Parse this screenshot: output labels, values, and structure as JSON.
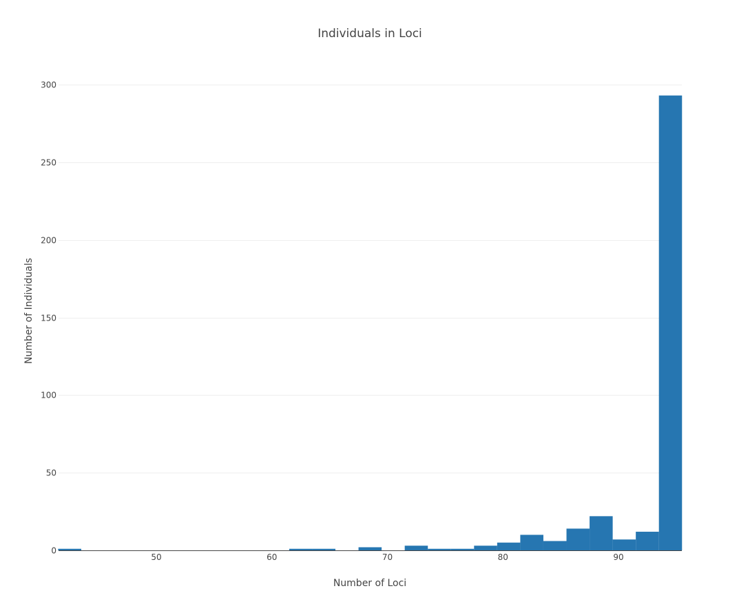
{
  "chart_data": {
    "type": "bar",
    "title": "Individuals in Loci",
    "xlabel": "Number of Loci",
    "ylabel": "Number of Individuals",
    "xlim": [
      41.5,
      96.5
    ],
    "ylim": [
      0,
      307
    ],
    "x_ticks": [
      50,
      60,
      70,
      80,
      90
    ],
    "y_ticks": [
      0,
      50,
      100,
      150,
      200,
      250,
      300
    ],
    "bin_width": 2,
    "grid": true,
    "legend": "none",
    "color": "#2676b1",
    "bins": [
      {
        "start": 41.5,
        "end": 43.5,
        "value": 1
      },
      {
        "start": 61.5,
        "end": 63.5,
        "value": 1
      },
      {
        "start": 63.5,
        "end": 65.5,
        "value": 1
      },
      {
        "start": 67.5,
        "end": 69.5,
        "value": 2
      },
      {
        "start": 71.5,
        "end": 73.5,
        "value": 3
      },
      {
        "start": 73.5,
        "end": 75.5,
        "value": 1
      },
      {
        "start": 75.5,
        "end": 77.5,
        "value": 1
      },
      {
        "start": 77.5,
        "end": 79.5,
        "value": 3
      },
      {
        "start": 79.5,
        "end": 81.5,
        "value": 5
      },
      {
        "start": 81.5,
        "end": 83.5,
        "value": 10
      },
      {
        "start": 83.5,
        "end": 85.5,
        "value": 6
      },
      {
        "start": 85.5,
        "end": 87.5,
        "value": 14
      },
      {
        "start": 87.5,
        "end": 89.5,
        "value": 22
      },
      {
        "start": 89.5,
        "end": 91.5,
        "value": 7
      },
      {
        "start": 91.5,
        "end": 93.5,
        "value": 12
      },
      {
        "start": 93.5,
        "end": 95.5,
        "value": 293
      }
    ]
  }
}
